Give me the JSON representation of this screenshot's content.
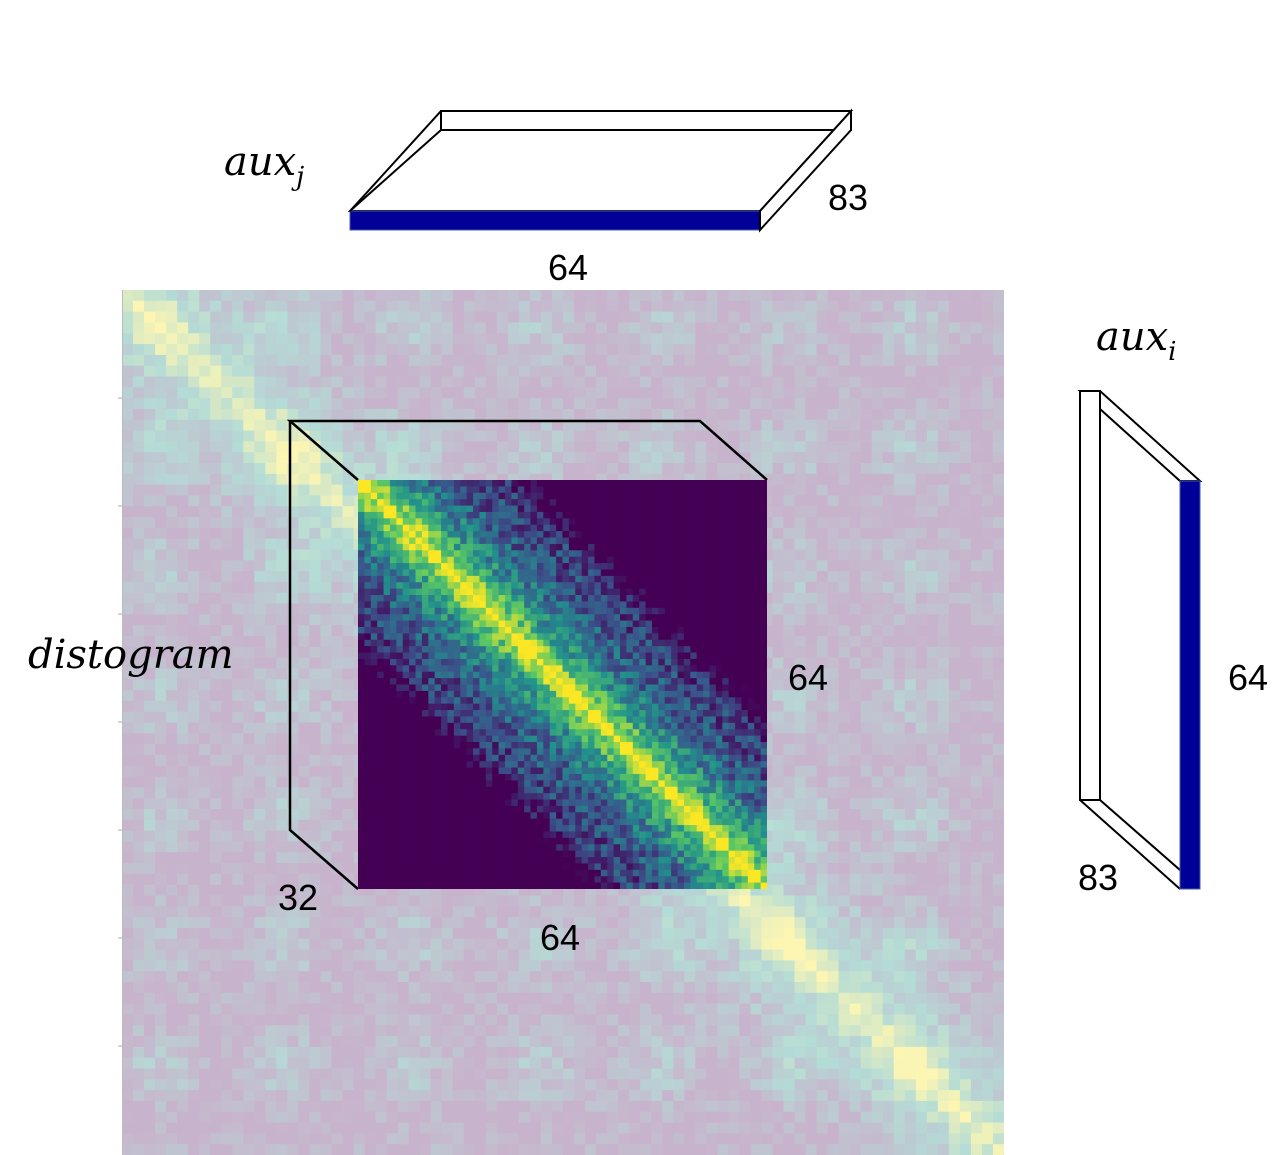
{
  "diagram": {
    "labels": {
      "aux_j": {
        "base": "aux",
        "sub": "j"
      },
      "aux_i": {
        "base": "aux",
        "sub": "i"
      },
      "distogram": "distogram"
    },
    "dimensions": {
      "aux_j_width": "64",
      "aux_j_depth": "83",
      "aux_i_height": "64",
      "aux_i_depth": "83",
      "crop_height": "64",
      "crop_width": "64",
      "crop_depth": "32"
    },
    "colors": {
      "aux_bar": "#000099",
      "crop_low": "#440154",
      "crop_mid": "#21918c",
      "crop_high": "#fde725",
      "background_low": "#c8b3cc",
      "background_mid": "#b4dcd6",
      "background_high": "#fdf6b3"
    }
  }
}
